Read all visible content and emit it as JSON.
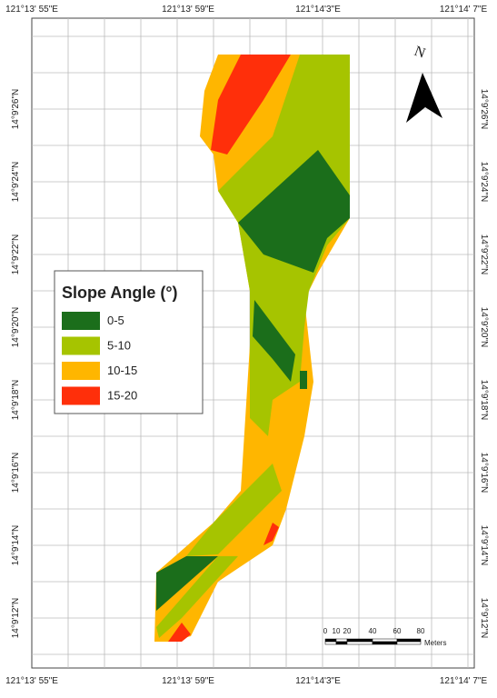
{
  "grid_labels": {
    "top": [
      "121°13' 55\"E",
      "121°13' 59\"E",
      "121°14'3\"E",
      "121°14' 7\"E"
    ],
    "bottom": [
      "121°13' 55\"E",
      "121°13' 59\"E",
      "121°14'3\"E",
      "121°14' 7\"E"
    ],
    "left": [
      "14°9'26\"N",
      "14°9'24\"N",
      "14°9'22\"N",
      "14°9'20\"N",
      "14°9'18\"N",
      "14°9'16\"N",
      "14°9'14\"N",
      "14°9'12\"N"
    ],
    "right": [
      "14°9'26\"N",
      "14°9'24\"N",
      "14°9'22\"N",
      "14°9'20\"N",
      "14°9'18\"N",
      "14°9'16\"N",
      "14°9'14\"N",
      "14°9'12\"N"
    ]
  },
  "legend": {
    "title": "Slope Angle (°)",
    "items": [
      {
        "label": "0-5",
        "color": "#1b6e1b"
      },
      {
        "label": "5-10",
        "color": "#a6c400"
      },
      {
        "label": "10-15",
        "color": "#ffb600"
      },
      {
        "label": "15-20",
        "color": "#ff2f0a"
      }
    ]
  },
  "north_label": "N",
  "scale_bar": {
    "ticks": [
      "0",
      "10",
      "20",
      "40",
      "60",
      "80"
    ],
    "unit": "Meters"
  }
}
